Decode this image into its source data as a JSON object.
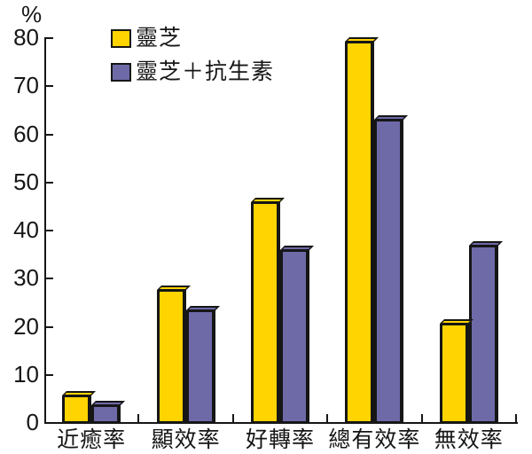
{
  "chart_data": {
    "type": "bar",
    "title": "",
    "unit_label": "%",
    "categories": [
      "近癒率",
      "顯效率",
      "好轉率",
      "總有效率",
      "無效率"
    ],
    "series": [
      {
        "name": "靈芝",
        "color": "#FFD400",
        "values": [
          5.8,
          27.6,
          45.9,
          79.3,
          20.7
        ]
      },
      {
        "name": "靈芝＋抗生素",
        "color": "#6E6AA8",
        "values": [
          3.7,
          23.5,
          35.9,
          63.1,
          36.9
        ]
      }
    ],
    "ylim": [
      0,
      80
    ],
    "yticks": [
      0,
      10,
      20,
      30,
      40,
      50,
      60,
      70,
      80
    ],
    "grid": false,
    "legend_position": "top-left-inside",
    "axis_color": "#161616",
    "background_color": "#FFFFFF"
  }
}
